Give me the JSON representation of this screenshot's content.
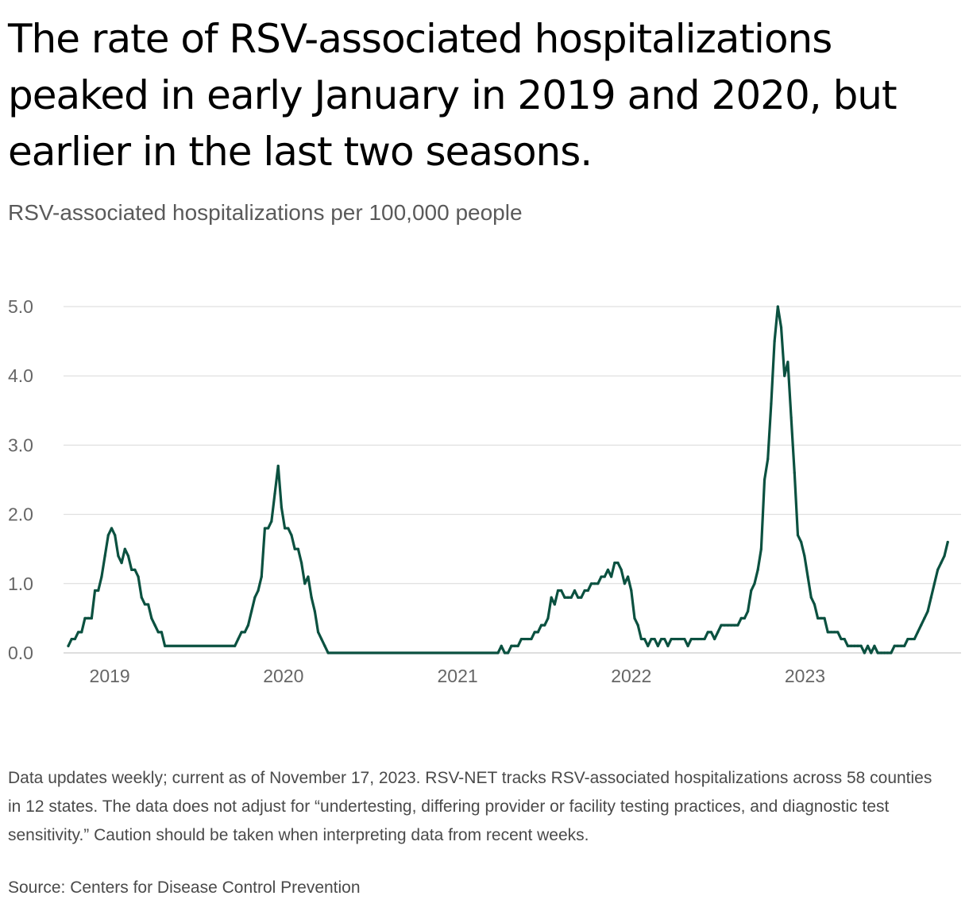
{
  "title": "The rate of RSV-associated hospitalizations peaked in early January in 2019 and 2020, but earlier in the last two seasons.",
  "subtitle": "RSV-associated hospitalizations per 100,000 people",
  "note": "Data updates weekly; current as of November 17, 2023. RSV-NET tracks RSV-associated hospitalizations across 58 counties in 12 states. The data does not adjust for “undertesting, differing provider or facility testing practices, and diagnostic test sensitivity.” Caution should be taken when interpreting data from recent weeks.",
  "source": "Source: Centers for Disease Control Prevention",
  "colors": {
    "line": "#0b5140",
    "grid": "#d9d9d9",
    "tick": "#666666"
  },
  "chart_data": {
    "type": "line",
    "title": "The rate of RSV-associated hospitalizations peaked in early January in 2019 and 2020, but earlier in the last two seasons.",
    "ylabel": "RSV-associated hospitalizations per 100,000 people",
    "xlabel": "",
    "ylim": [
      0,
      5.0
    ],
    "xlim": [
      "2018-09-26",
      "2023-11-25"
    ],
    "grid": "horizontal",
    "y_ticks": [
      "0.0",
      "1.0",
      "2.0",
      "3.0",
      "4.0",
      "5.0"
    ],
    "x_ticks": [
      {
        "label": "2019",
        "date": "2019-01-01"
      },
      {
        "label": "2020",
        "date": "2020-01-01"
      },
      {
        "label": "2021",
        "date": "2021-01-01"
      },
      {
        "label": "2022",
        "date": "2022-01-01"
      },
      {
        "label": "2023",
        "date": "2023-01-01"
      }
    ],
    "series": [
      {
        "points": [
          [
            "2018-10-06",
            0.1
          ],
          [
            "2018-10-13",
            0.2
          ],
          [
            "2018-10-20",
            0.2
          ],
          [
            "2018-10-27",
            0.3
          ],
          [
            "2018-11-03",
            0.3
          ],
          [
            "2018-11-10",
            0.5
          ],
          [
            "2018-11-17",
            0.5
          ],
          [
            "2018-11-24",
            0.5
          ],
          [
            "2018-12-01",
            0.9
          ],
          [
            "2018-12-08",
            0.9
          ],
          [
            "2018-12-15",
            1.1
          ],
          [
            "2018-12-22",
            1.4
          ],
          [
            "2018-12-29",
            1.7
          ],
          [
            "2019-01-05",
            1.8
          ],
          [
            "2019-01-12",
            1.7
          ],
          [
            "2019-01-19",
            1.4
          ],
          [
            "2019-01-26",
            1.3
          ],
          [
            "2019-02-02",
            1.5
          ],
          [
            "2019-02-09",
            1.4
          ],
          [
            "2019-02-16",
            1.2
          ],
          [
            "2019-02-23",
            1.2
          ],
          [
            "2019-03-02",
            1.1
          ],
          [
            "2019-03-09",
            0.8
          ],
          [
            "2019-03-16",
            0.7
          ],
          [
            "2019-03-23",
            0.7
          ],
          [
            "2019-03-30",
            0.5
          ],
          [
            "2019-04-06",
            0.4
          ],
          [
            "2019-04-13",
            0.3
          ],
          [
            "2019-04-20",
            0.3
          ],
          [
            "2019-04-27",
            0.1
          ],
          [
            "2019-09-21",
            0.1
          ],
          [
            "2019-09-28",
            0.2
          ],
          [
            "2019-10-05",
            0.3
          ],
          [
            "2019-10-12",
            0.3
          ],
          [
            "2019-10-19",
            0.4
          ],
          [
            "2019-10-26",
            0.6
          ],
          [
            "2019-11-02",
            0.8
          ],
          [
            "2019-11-09",
            0.9
          ],
          [
            "2019-11-16",
            1.1
          ],
          [
            "2019-11-23",
            1.8
          ],
          [
            "2019-11-30",
            1.8
          ],
          [
            "2019-12-07",
            1.9
          ],
          [
            "2019-12-14",
            2.3
          ],
          [
            "2019-12-21",
            2.7
          ],
          [
            "2019-12-28",
            2.1
          ],
          [
            "2020-01-04",
            1.8
          ],
          [
            "2020-01-11",
            1.8
          ],
          [
            "2020-01-18",
            1.7
          ],
          [
            "2020-01-25",
            1.5
          ],
          [
            "2020-02-01",
            1.5
          ],
          [
            "2020-02-08",
            1.3
          ],
          [
            "2020-02-15",
            1.0
          ],
          [
            "2020-02-22",
            1.1
          ],
          [
            "2020-02-29",
            0.8
          ],
          [
            "2020-03-07",
            0.6
          ],
          [
            "2020-03-14",
            0.3
          ],
          [
            "2020-03-21",
            0.2
          ],
          [
            "2020-03-28",
            0.1
          ],
          [
            "2020-04-04",
            0.0
          ],
          [
            "2021-03-27",
            0.0
          ],
          [
            "2021-04-03",
            0.1
          ],
          [
            "2021-04-10",
            0.0
          ],
          [
            "2021-04-17",
            0.0
          ],
          [
            "2021-04-24",
            0.1
          ],
          [
            "2021-05-01",
            0.1
          ],
          [
            "2021-05-08",
            0.1
          ],
          [
            "2021-05-15",
            0.2
          ],
          [
            "2021-05-22",
            0.2
          ],
          [
            "2021-05-29",
            0.2
          ],
          [
            "2021-06-05",
            0.2
          ],
          [
            "2021-06-12",
            0.3
          ],
          [
            "2021-06-19",
            0.3
          ],
          [
            "2021-06-26",
            0.4
          ],
          [
            "2021-07-03",
            0.4
          ],
          [
            "2021-07-10",
            0.5
          ],
          [
            "2021-07-17",
            0.8
          ],
          [
            "2021-07-24",
            0.7
          ],
          [
            "2021-07-31",
            0.9
          ],
          [
            "2021-08-07",
            0.9
          ],
          [
            "2021-08-14",
            0.8
          ],
          [
            "2021-08-21",
            0.8
          ],
          [
            "2021-08-28",
            0.8
          ],
          [
            "2021-09-04",
            0.9
          ],
          [
            "2021-09-11",
            0.8
          ],
          [
            "2021-09-18",
            0.8
          ],
          [
            "2021-09-25",
            0.9
          ],
          [
            "2021-10-02",
            0.9
          ],
          [
            "2021-10-09",
            1.0
          ],
          [
            "2021-10-16",
            1.0
          ],
          [
            "2021-10-23",
            1.0
          ],
          [
            "2021-10-30",
            1.1
          ],
          [
            "2021-11-06",
            1.1
          ],
          [
            "2021-11-13",
            1.2
          ],
          [
            "2021-11-20",
            1.1
          ],
          [
            "2021-11-27",
            1.3
          ],
          [
            "2021-12-04",
            1.3
          ],
          [
            "2021-12-11",
            1.2
          ],
          [
            "2021-12-18",
            1.0
          ],
          [
            "2021-12-25",
            1.1
          ],
          [
            "2022-01-01",
            0.9
          ],
          [
            "2022-01-08",
            0.5
          ],
          [
            "2022-01-15",
            0.4
          ],
          [
            "2022-01-22",
            0.2
          ],
          [
            "2022-01-29",
            0.2
          ],
          [
            "2022-02-05",
            0.1
          ],
          [
            "2022-02-12",
            0.2
          ],
          [
            "2022-02-19",
            0.2
          ],
          [
            "2022-02-26",
            0.1
          ],
          [
            "2022-03-05",
            0.2
          ],
          [
            "2022-03-12",
            0.2
          ],
          [
            "2022-03-19",
            0.1
          ],
          [
            "2022-03-26",
            0.2
          ],
          [
            "2022-04-02",
            0.2
          ],
          [
            "2022-04-09",
            0.2
          ],
          [
            "2022-04-16",
            0.2
          ],
          [
            "2022-04-23",
            0.2
          ],
          [
            "2022-04-30",
            0.1
          ],
          [
            "2022-05-07",
            0.2
          ],
          [
            "2022-05-14",
            0.2
          ],
          [
            "2022-05-21",
            0.2
          ],
          [
            "2022-05-28",
            0.2
          ],
          [
            "2022-06-04",
            0.2
          ],
          [
            "2022-06-11",
            0.3
          ],
          [
            "2022-06-18",
            0.3
          ],
          [
            "2022-06-25",
            0.2
          ],
          [
            "2022-07-02",
            0.3
          ],
          [
            "2022-07-09",
            0.4
          ],
          [
            "2022-07-16",
            0.4
          ],
          [
            "2022-07-23",
            0.4
          ],
          [
            "2022-07-30",
            0.4
          ],
          [
            "2022-08-06",
            0.4
          ],
          [
            "2022-08-13",
            0.4
          ],
          [
            "2022-08-20",
            0.5
          ],
          [
            "2022-08-27",
            0.5
          ],
          [
            "2022-09-03",
            0.6
          ],
          [
            "2022-09-10",
            0.9
          ],
          [
            "2022-09-17",
            1.0
          ],
          [
            "2022-09-24",
            1.2
          ],
          [
            "2022-10-01",
            1.5
          ],
          [
            "2022-10-08",
            2.5
          ],
          [
            "2022-10-15",
            2.8
          ],
          [
            "2022-10-22",
            3.6
          ],
          [
            "2022-10-29",
            4.5
          ],
          [
            "2022-11-05",
            5.0
          ],
          [
            "2022-11-12",
            4.7
          ],
          [
            "2022-11-19",
            4.0
          ],
          [
            "2022-11-26",
            4.2
          ],
          [
            "2022-12-03",
            3.4
          ],
          [
            "2022-12-10",
            2.6
          ],
          [
            "2022-12-17",
            1.7
          ],
          [
            "2022-12-24",
            1.6
          ],
          [
            "2022-12-31",
            1.4
          ],
          [
            "2023-01-07",
            1.1
          ],
          [
            "2023-01-14",
            0.8
          ],
          [
            "2023-01-21",
            0.7
          ],
          [
            "2023-01-28",
            0.5
          ],
          [
            "2023-02-04",
            0.5
          ],
          [
            "2023-02-11",
            0.5
          ],
          [
            "2023-02-18",
            0.3
          ],
          [
            "2023-02-25",
            0.3
          ],
          [
            "2023-03-04",
            0.3
          ],
          [
            "2023-03-11",
            0.3
          ],
          [
            "2023-03-18",
            0.2
          ],
          [
            "2023-03-25",
            0.2
          ],
          [
            "2023-04-01",
            0.1
          ],
          [
            "2023-04-08",
            0.1
          ],
          [
            "2023-04-15",
            0.1
          ],
          [
            "2023-04-22",
            0.1
          ],
          [
            "2023-04-29",
            0.1
          ],
          [
            "2023-05-06",
            0.0
          ],
          [
            "2023-05-13",
            0.1
          ],
          [
            "2023-05-20",
            0.0
          ],
          [
            "2023-05-27",
            0.1
          ],
          [
            "2023-06-03",
            0.0
          ],
          [
            "2023-06-10",
            0.0
          ],
          [
            "2023-06-17",
            0.0
          ],
          [
            "2023-06-24",
            0.0
          ],
          [
            "2023-07-01",
            0.0
          ],
          [
            "2023-07-08",
            0.1
          ],
          [
            "2023-07-15",
            0.1
          ],
          [
            "2023-07-22",
            0.1
          ],
          [
            "2023-07-29",
            0.1
          ],
          [
            "2023-08-05",
            0.2
          ],
          [
            "2023-08-12",
            0.2
          ],
          [
            "2023-08-19",
            0.2
          ],
          [
            "2023-08-26",
            0.3
          ],
          [
            "2023-09-02",
            0.4
          ],
          [
            "2023-09-09",
            0.5
          ],
          [
            "2023-09-16",
            0.6
          ],
          [
            "2023-09-23",
            0.8
          ],
          [
            "2023-09-30",
            1.0
          ],
          [
            "2023-10-07",
            1.2
          ],
          [
            "2023-10-14",
            1.3
          ],
          [
            "2023-10-21",
            1.4
          ],
          [
            "2023-10-28",
            1.6
          ]
        ]
      }
    ]
  }
}
